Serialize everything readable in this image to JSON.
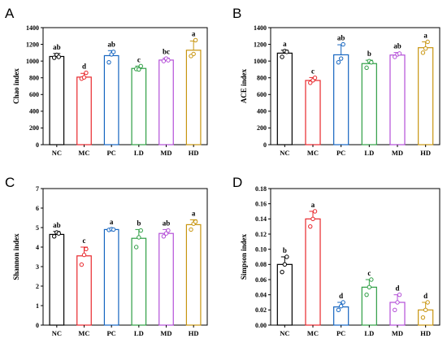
{
  "groups": [
    "NC",
    "MC",
    "PC",
    "LD",
    "MD",
    "HD"
  ],
  "colors": [
    "#000000",
    "#e8262b",
    "#1565c0",
    "#2e9e44",
    "#b44fd8",
    "#c8950f"
  ],
  "chart_data": [
    {
      "panel": "A",
      "type": "bar",
      "ylabel": "Chao index",
      "categories": [
        "NC",
        "MC",
        "PC",
        "LD",
        "MD",
        "HD"
      ],
      "values": [
        1055,
        808,
        1065,
        912,
        1012,
        1130
      ],
      "errors": [
        35,
        45,
        60,
        28,
        22,
        110
      ],
      "points": [
        [
          1040,
          1075,
          1050
        ],
        [
          790,
          805,
          860
        ],
        [
          985,
          1080,
          1110
        ],
        [
          905,
          900,
          940
        ],
        [
          1000,
          1030,
          1010
        ],
        [
          1060,
          1085,
          1250
        ]
      ],
      "significance": [
        "ab",
        "d",
        "ab",
        "c",
        "bc",
        "a"
      ],
      "ylim": [
        0,
        1400
      ],
      "yticks": [
        0,
        200,
        400,
        600,
        800,
        1000,
        1200,
        1400
      ]
    },
    {
      "panel": "B",
      "type": "bar",
      "ylabel": "ACE index",
      "categories": [
        "NC",
        "MC",
        "PC",
        "LD",
        "MD",
        "HD"
      ],
      "values": [
        1095,
        768,
        1075,
        970,
        1072,
        1160
      ],
      "errors": [
        35,
        35,
        120,
        40,
        30,
        70
      ],
      "points": [
        [
          1050,
          1120,
          1110
        ],
        [
          740,
          770,
          800
        ],
        [
          985,
          1030,
          1200
        ],
        [
          920,
          1000,
          985
        ],
        [
          1050,
          1080,
          1090
        ],
        [
          1100,
          1150,
          1230
        ]
      ],
      "significance": [
        "a",
        "c",
        "ab",
        "b",
        "ab",
        "a"
      ],
      "ylim": [
        0,
        1400
      ],
      "yticks": [
        0,
        200,
        400,
        600,
        800,
        1000,
        1200,
        1400
      ]
    },
    {
      "panel": "C",
      "type": "bar",
      "ylabel": "Shannon index",
      "categories": [
        "NC",
        "MC",
        "PC",
        "LD",
        "MD",
        "HD"
      ],
      "values": [
        4.65,
        3.55,
        4.9,
        4.45,
        4.7,
        5.15
      ],
      "errors": [
        0.15,
        0.45,
        0.05,
        0.45,
        0.2,
        0.25
      ],
      "points": [
        [
          4.55,
          4.75,
          4.7
        ],
        [
          3.1,
          3.6,
          3.9
        ],
        [
          4.88,
          4.92,
          4.9
        ],
        [
          4.0,
          4.5,
          4.85
        ],
        [
          4.55,
          4.7,
          4.85
        ],
        [
          4.9,
          5.2,
          5.3
        ]
      ],
      "significance": [
        "ab",
        "c",
        "a",
        "b",
        "ab",
        "a"
      ],
      "ylim": [
        0,
        7
      ],
      "yticks": [
        0,
        1,
        2,
        3,
        4,
        5,
        6,
        7
      ]
    },
    {
      "panel": "D",
      "type": "bar",
      "ylabel": "Simpson  index",
      "categories": [
        "NC",
        "MC",
        "PC",
        "LD",
        "MD",
        "HD"
      ],
      "values": [
        0.08,
        0.14,
        0.024,
        0.05,
        0.03,
        0.02
      ],
      "errors": [
        0.01,
        0.01,
        0.006,
        0.01,
        0.01,
        0.01
      ],
      "points": [
        [
          0.07,
          0.08,
          0.09
        ],
        [
          0.13,
          0.14,
          0.15
        ],
        [
          0.02,
          0.025,
          0.03
        ],
        [
          0.04,
          0.05,
          0.06
        ],
        [
          0.02,
          0.03,
          0.04
        ],
        [
          0.01,
          0.02,
          0.03
        ]
      ],
      "significance": [
        "b",
        "a",
        "d",
        "c",
        "d",
        "d"
      ],
      "ylim": [
        0,
        0.18
      ],
      "yticks": [
        0.0,
        0.02,
        0.04,
        0.06,
        0.08,
        0.1,
        0.12,
        0.14,
        0.16,
        0.18
      ]
    }
  ]
}
